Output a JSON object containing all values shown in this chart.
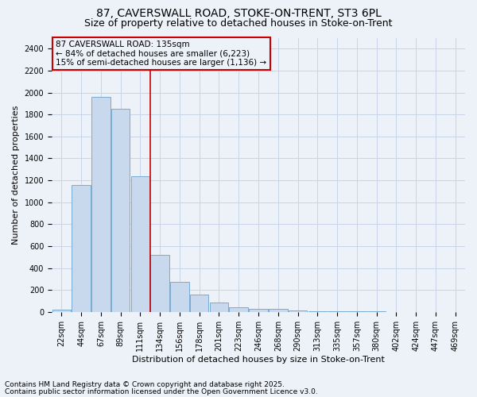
{
  "title_line1": "87, CAVERSWALL ROAD, STOKE-ON-TRENT, ST3 6PL",
  "title_line2": "Size of property relative to detached houses in Stoke-on-Trent",
  "xlabel": "Distribution of detached houses by size in Stoke-on-Trent",
  "ylabel": "Number of detached properties",
  "categories": [
    "22sqm",
    "44sqm",
    "67sqm",
    "89sqm",
    "111sqm",
    "134sqm",
    "156sqm",
    "178sqm",
    "201sqm",
    "223sqm",
    "246sqm",
    "268sqm",
    "290sqm",
    "313sqm",
    "335sqm",
    "357sqm",
    "380sqm",
    "402sqm",
    "424sqm",
    "447sqm",
    "469sqm"
  ],
  "values": [
    22,
    1160,
    1960,
    1850,
    1240,
    520,
    275,
    155,
    85,
    45,
    30,
    28,
    12,
    8,
    5,
    4,
    3,
    2,
    2,
    1,
    1
  ],
  "bar_color": "#c8d9ee",
  "bar_edge_color": "#7aaad4",
  "vline_color": "#cc0000",
  "annotation_text": "87 CAVERSWALL ROAD: 135sqm\n← 84% of detached houses are smaller (6,223)\n15% of semi-detached houses are larger (1,136) →",
  "annotation_box_color": "#cc0000",
  "ylim": [
    0,
    2500
  ],
  "yticks": [
    0,
    200,
    400,
    600,
    800,
    1000,
    1200,
    1400,
    1600,
    1800,
    2000,
    2200,
    2400
  ],
  "grid_color": "#c8d4e8",
  "background_color": "#edf2f9",
  "footer_line1": "Contains HM Land Registry data © Crown copyright and database right 2025.",
  "footer_line2": "Contains public sector information licensed under the Open Government Licence v3.0.",
  "title_fontsize": 10,
  "subtitle_fontsize": 9,
  "axis_label_fontsize": 8,
  "tick_fontsize": 7,
  "annotation_fontsize": 7.5,
  "footer_fontsize": 6.5
}
